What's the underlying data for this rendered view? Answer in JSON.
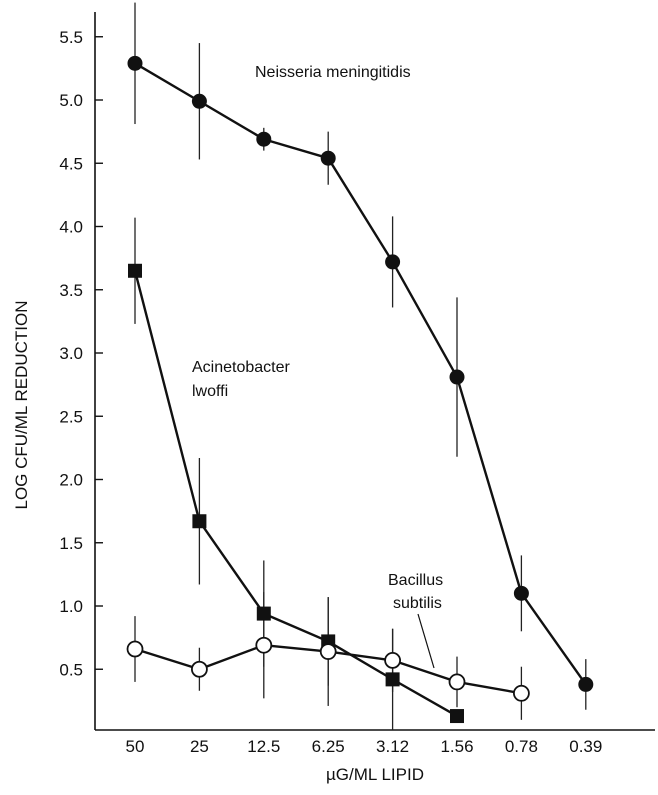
{
  "chart_data": {
    "type": "line",
    "title": "",
    "xlabel": "µG/ML LIPID",
    "ylabel": "LOG CFU/ML REDUCTION",
    "categories": [
      "50",
      "25",
      "12.5",
      "6.25",
      "3.12",
      "1.56",
      "0.78",
      "0.39"
    ],
    "yticks": [
      "0.5",
      "1.0",
      "1.5",
      "2.0",
      "2.5",
      "3.0",
      "3.5",
      "4.0",
      "4.5",
      "5.0",
      "5.5"
    ],
    "ylim": [
      0.1,
      5.7
    ],
    "grid": false,
    "series": [
      {
        "name": "Neisseria meningitidis",
        "marker": "filled-circle",
        "values": [
          5.29,
          4.99,
          4.69,
          4.54,
          3.72,
          2.81,
          1.1,
          0.38
        ],
        "errors": [
          0.48,
          0.46,
          0.09,
          0.21,
          0.36,
          0.63,
          0.3,
          0.2
        ]
      },
      {
        "name": "Acinetobacter lwoffi",
        "label_lines": [
          "Acinetobacter",
          "lwoffi"
        ],
        "marker": "filled-square",
        "values": [
          3.65,
          1.67,
          0.94,
          0.72,
          0.42,
          0.13,
          null,
          null
        ],
        "errors": [
          0.42,
          0.5,
          0.42,
          0.35,
          0.4,
          0.0,
          null,
          null
        ]
      },
      {
        "name": "Bacillus subtilis",
        "label_lines": [
          "Bacillus",
          "subtilis"
        ],
        "marker": "open-circle",
        "values": [
          0.66,
          0.5,
          0.69,
          0.64,
          0.57,
          0.4,
          0.31,
          null
        ],
        "errors": [
          0.26,
          0.17,
          0.42,
          0.43,
          0.25,
          0.2,
          0.21,
          null
        ]
      }
    ]
  }
}
